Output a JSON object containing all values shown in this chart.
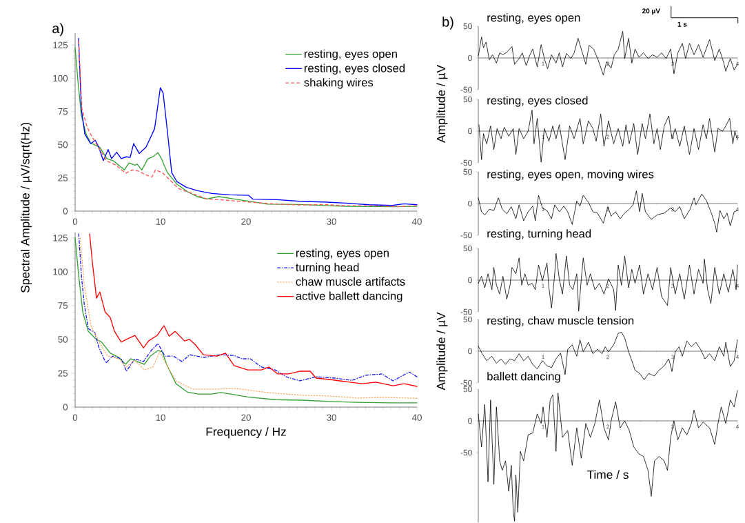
{
  "chart_data": [
    {
      "type": "line",
      "ylabel": "Spectral Amplitude / µV/sqrt(Hz)",
      "annotations": [
        "a)"
      ],
      "xlim": [
        0,
        40
      ],
      "ylim": [
        0,
        134
      ],
      "xticks": [
        0,
        10,
        20,
        30,
        40
      ],
      "yticks": [
        0,
        25,
        50,
        75,
        100,
        125
      ],
      "legend": "top right",
      "series": [
        {
          "name": "resting, eyes open",
          "color": "#33a033",
          "line_style": "solid",
          "x": [
            0,
            0.33,
            0.73,
            1.28,
            1.82,
            2.9,
            3.7,
            4.5,
            5.76,
            6.3,
            7,
            7.25,
            7.8,
            8.5,
            9.2,
            9.7,
            10.1,
            10.8,
            11.9,
            13.2,
            14.3,
            15.4,
            16.8,
            18.1,
            20.3,
            22.5,
            26.3,
            31.7,
            37.1,
            40
          ],
          "values": [
            123,
            98,
            72,
            58,
            51.3,
            48,
            39.5,
            37.8,
            31,
            36.3,
            34.6,
            35.4,
            31,
            39.3,
            41.4,
            44,
            39.5,
            29,
            20.4,
            14.4,
            10.9,
            9.2,
            10.9,
            9.7,
            7.5,
            5.3,
            5,
            3.6,
            3.3,
            3.6
          ]
        },
        {
          "name": "resting, eyes closed",
          "color": "#0000ff",
          "line_style": "solid",
          "x": [
            0.4,
            0.73,
            1.14,
            1.82,
            2.36,
            2.77,
            3.3,
            3.86,
            4.27,
            4.86,
            5.4,
            6,
            6.44,
            6.85,
            7.5,
            8.3,
            9.3,
            9.97,
            10.3,
            10.8,
            11.3,
            11.9,
            13,
            14.3,
            16,
            18.1,
            20.3,
            20.8,
            23.6,
            26.3,
            29,
            31.7,
            34.4,
            37.1,
            38.5,
            40
          ],
          "values": [
            130,
            77,
            58,
            50.8,
            53.4,
            48,
            38,
            46.4,
            39.5,
            44.3,
            39.5,
            40.9,
            40.4,
            50.8,
            43.4,
            48.2,
            62,
            92.9,
            88.9,
            60,
            29,
            22.3,
            18,
            15.4,
            13.3,
            12.3,
            11.9,
            9,
            8.6,
            7.4,
            6.9,
            6,
            4.8,
            4.3,
            5.5,
            4.8
          ]
        },
        {
          "name": "shaking wires",
          "color": "#ff5555",
          "line_style": "dashed",
          "x": [
            0.42,
            0.8,
            1.4,
            1.8,
            2.9,
            3.7,
            4.8,
            5.9,
            6.7,
            7.5,
            8.2,
            9,
            9.4,
            10.2,
            11,
            12.1,
            13.5,
            15.4,
            18.1,
            20.8,
            23.6,
            26.3,
            29,
            31.7,
            34.4,
            37.7,
            40
          ],
          "values": [
            128,
            77,
            63.5,
            58,
            46,
            37.8,
            34.6,
            28.5,
            31,
            30,
            27.5,
            25.7,
            31,
            29,
            24,
            17,
            13.8,
            9.2,
            8,
            6.6,
            5.3,
            4.6,
            5,
            4.1,
            4.1,
            3.3,
            4.1
          ]
        }
      ]
    },
    {
      "type": "line",
      "xlabel": "Frequency / Hz",
      "xlim": [
        0,
        40
      ],
      "ylim": [
        0,
        129
      ],
      "xticks": [
        0,
        10,
        20,
        30,
        40
      ],
      "yticks": [
        0,
        25,
        50,
        75,
        100,
        125
      ],
      "legend": "top right",
      "series": [
        {
          "name": "resting, eyes open",
          "color": "#33a033",
          "line_style": "solid",
          "x": [
            0,
            0.42,
            0.9,
            1.54,
            2.5,
            3.1,
            4.1,
            5.1,
            5.9,
            6.5,
            7.3,
            8.1,
            8.8,
            9.7,
            10.2,
            10.7,
            11.8,
            13.1,
            14.4,
            16,
            17,
            18.2,
            20.2,
            23.4,
            26.6,
            29.8,
            33,
            36.9,
            40
          ],
          "values": [
            125,
            96.9,
            70,
            56,
            50,
            48,
            40,
            36.7,
            31.6,
            35.7,
            33.6,
            31.6,
            37.7,
            41.8,
            40.8,
            31.6,
            17.3,
            11.2,
            9.6,
            9.6,
            10.8,
            9.6,
            7.5,
            5.5,
            5.1,
            4.1,
            3.5,
            3.1,
            3.1
          ]
        },
        {
          "name": "turning head",
          "color": "#1a1aee",
          "line_style": "dashdot",
          "x": [
            0.42,
            0.74,
            1.06,
            1.54,
            2.3,
            2.8,
            3.6,
            4.4,
            5.4,
            6,
            7,
            8,
            8.9,
            9.7,
            10.5,
            11.5,
            12.5,
            13.4,
            15,
            17,
            18.6,
            19.5,
            20.5,
            21.8,
            23.4,
            24.7,
            26.3,
            28.2,
            30.4,
            32.4,
            34,
            35.9,
            37.2,
            39.1,
            40
          ],
          "values": [
            128,
            96.9,
            76.5,
            58,
            55,
            43.8,
            32.6,
            37.7,
            35.7,
            26.5,
            35.7,
            33.6,
            41.8,
            46.9,
            37.7,
            37.7,
            33.6,
            38.7,
            36.7,
            38.7,
            38.1,
            35.7,
            35.7,
            29.6,
            27.5,
            22.4,
            19.4,
            22.4,
            21.4,
            19.8,
            23.5,
            24.5,
            19.4,
            25.9,
            22.4
          ]
        },
        {
          "name": "chaw muscle artifacts",
          "color": "#ffaa66",
          "line_style": "dotted",
          "x": [
            0.58,
            1.06,
            1.86,
            2.8,
            3.8,
            5.1,
            6,
            7,
            8.1,
            9.1,
            9.9,
            10.5,
            11.8,
            13.7,
            16.3,
            18.9,
            21.4,
            23.4,
            26.6,
            29.8,
            33,
            36.2,
            40
          ],
          "values": [
            125,
            90.7,
            60,
            48,
            37.7,
            35.7,
            29.6,
            34.7,
            27.5,
            29.6,
            40.8,
            33.6,
            19.4,
            13.3,
            13.3,
            13.7,
            11.6,
            10.2,
            8.8,
            8.2,
            6.7,
            7.1,
            6.5
          ]
        },
        {
          "name": "active ballett dancing",
          "color": "#ff0000",
          "line_style": "solid",
          "x": [
            1.7,
            2.02,
            2.5,
            2.9,
            3.5,
            4.1,
            4.6,
            5.4,
            6,
            7,
            8,
            8.6,
            9.6,
            10.4,
            11,
            11.7,
            12.8,
            13.4,
            14.1,
            15,
            16.6,
            17.6,
            18.6,
            20.2,
            21.8,
            22.7,
            23.7,
            25,
            26.3,
            27.5,
            28.2,
            29.8,
            31.4,
            33.6,
            35.2,
            37.2,
            38.5,
            40
          ],
          "values": [
            128,
            107,
            80.5,
            85,
            70.4,
            66.3,
            56,
            48,
            50,
            53,
            43.8,
            48.9,
            53,
            60.2,
            52.4,
            56,
            48.9,
            50,
            45.9,
            38.7,
            37.7,
            39.8,
            30.6,
            27.5,
            27.5,
            29.6,
            24.5,
            24.5,
            26.5,
            26.5,
            21.4,
            20.4,
            19,
            17.3,
            18.4,
            15.7,
            17.3,
            15.3
          ]
        }
      ]
    },
    {
      "type": "line",
      "title": "resting, eyes open",
      "annotations": [
        "b)",
        "20 µV",
        "1 s"
      ],
      "xlim": [
        0,
        4
      ],
      "ylim": [
        -50,
        50
      ],
      "xticks": [
        1,
        2,
        3,
        4
      ],
      "yticks": [
        -50,
        0,
        50
      ],
      "color": "#000000",
      "x": [
        0,
        0.05,
        0.08,
        0.12,
        0.17,
        0.22,
        0.28,
        0.33,
        0.38,
        0.45,
        0.52,
        0.56,
        0.63,
        0.68,
        0.74,
        0.79,
        0.84,
        0.91,
        0.97,
        1.02,
        1.07,
        1.13,
        1.2,
        1.25,
        1.3,
        1.36,
        1.43,
        1.48,
        1.54,
        1.61,
        1.66,
        1.71,
        1.78,
        1.85,
        1.93,
        1.98,
        2.05,
        2.1,
        2.16,
        2.23,
        2.26,
        2.32,
        2.37,
        2.42,
        2.48,
        2.55,
        2.62,
        2.69,
        2.76,
        2.83,
        2.9,
        2.97,
        3.02,
        3.08,
        3.15,
        3.2,
        3.26,
        3.33,
        3.4,
        3.47,
        3.57,
        3.65,
        3.72,
        3.79,
        3.82,
        3.89,
        3.95,
        4
      ],
      "values": [
        3,
        33,
        16,
        25,
        -3,
        5,
        -8,
        8,
        5,
        10,
        18,
        -10,
        -1,
        8,
        -12,
        3,
        14,
        -14,
        21,
        -1,
        -17,
        5,
        -8,
        8,
        -14,
        7,
        -1,
        8,
        31,
        7,
        -10,
        20,
        14,
        -3,
        -27,
        -6,
        -16,
        5,
        14,
        42,
        -1,
        31,
        -8,
        14,
        1,
        8,
        -1,
        5,
        1,
        8,
        -1,
        14,
        -25,
        8,
        23,
        -1,
        23,
        5,
        21,
        1,
        29,
        -4,
        14,
        -8,
        -21,
        -1,
        -19,
        -10
      ]
    },
    {
      "type": "line",
      "title": "resting, eyes closed",
      "ylabel": "Amplitude / µV",
      "xlim": [
        0,
        4
      ],
      "ylim": [
        -50,
        50
      ],
      "xticks": [
        1,
        2,
        3,
        4
      ],
      "yticks": [
        -50,
        0,
        50
      ],
      "color": "#000000",
      "x": [
        0.01,
        0.05,
        0.08,
        0.13,
        0.19,
        0.24,
        0.29,
        0.35,
        0.4,
        0.47,
        0.54,
        0.58,
        0.63,
        0.7,
        0.77,
        0.83,
        0.86,
        0.91,
        0.97,
        1.02,
        1.09,
        1.15,
        1.2,
        1.25,
        1.34,
        1.41,
        1.48,
        1.57,
        1.62,
        1.7,
        1.77,
        1.82,
        1.89,
        1.94,
        2.01,
        2.09,
        2.16,
        2.23,
        2.28,
        2.33,
        2.4,
        2.46,
        2.53,
        2.58,
        2.65,
        2.71,
        2.76,
        2.81,
        2.87,
        2.94,
        2.99,
        3.04,
        3.11,
        3.18,
        3.26,
        3.33,
        3.4,
        3.47,
        3.52,
        3.57,
        3.65,
        3.7,
        3.77,
        3.82,
        3.88,
        3.93,
        3.96,
        4
      ],
      "values": [
        10,
        -45,
        -4,
        -20,
        8,
        -29,
        4,
        -12,
        6,
        -8,
        4,
        -37,
        4,
        -12,
        0,
        33,
        -20,
        20,
        -49,
        4,
        -16,
        8,
        -12,
        10,
        -45,
        8,
        -12,
        20,
        -20,
        16,
        4,
        -16,
        27,
        -24,
        16,
        -20,
        4,
        -24,
        10,
        -20,
        12,
        -37,
        12,
        -12,
        27,
        -20,
        4,
        -29,
        8,
        24,
        -12,
        4,
        -24,
        8,
        -37,
        4,
        -29,
        10,
        -12,
        20,
        -33,
        4,
        0,
        8,
        20,
        -20,
        0,
        -14
      ]
    },
    {
      "type": "line",
      "title": "resting, eyes open, moving wires",
      "xlim": [
        0,
        4
      ],
      "ylim": [
        -50,
        50
      ],
      "xticks": [
        1,
        2,
        3,
        4
      ],
      "yticks": [
        -50,
        0,
        50
      ],
      "color": "#000000",
      "x": [
        0,
        0.05,
        0.1,
        0.17,
        0.24,
        0.31,
        0.37,
        0.44,
        0.51,
        0.58,
        0.63,
        0.7,
        0.77,
        0.84,
        0.88,
        0.93,
        0.99,
        1.06,
        1.13,
        1.18,
        1.25,
        1.32,
        1.38,
        1.45,
        1.52,
        1.57,
        1.62,
        1.7,
        1.77,
        1.84,
        1.93,
        2,
        2.05,
        2.12,
        2.19,
        2.26,
        2.33,
        2.39,
        2.44,
        2.49,
        2.53,
        2.58,
        2.67,
        2.76,
        2.87,
        2.97,
        3.04,
        3.11,
        3.18,
        3.27,
        3.33,
        3.36,
        3.45,
        3.52,
        3.59,
        3.65,
        3.68,
        3.73,
        3.79,
        3.84,
        3.89,
        3.95,
        4
      ],
      "values": [
        9,
        -13,
        -18,
        -9,
        -11,
        9,
        -9,
        -16,
        -5,
        -24,
        -2,
        -27,
        -13,
        -4,
        -27,
        13,
        -7,
        -11,
        -24,
        -2,
        -13,
        -4,
        -13,
        -33,
        4,
        -4,
        13,
        2,
        -13,
        -15,
        -31,
        -5,
        -20,
        -13,
        -24,
        -15,
        -9,
        -2,
        20,
        -13,
        16,
        -13,
        -25,
        -18,
        -15,
        -7,
        -13,
        -5,
        -24,
        -9,
        9,
        -2,
        15,
        5,
        -13,
        -31,
        -45,
        -11,
        -24,
        -15,
        -35,
        -13,
        -11
      ]
    },
    {
      "type": "line",
      "title": "resting, turning head",
      "xlim": [
        0,
        4
      ],
      "ylim": [
        -50,
        50
      ],
      "xticks": [
        1,
        2,
        3,
        4
      ],
      "yticks": [
        -50,
        0,
        50
      ],
      "color": "#000000",
      "x": [
        0,
        0.05,
        0.1,
        0.15,
        0.21,
        0.24,
        0.28,
        0.33,
        0.38,
        0.44,
        0.49,
        0.52,
        0.58,
        0.63,
        0.67,
        0.72,
        0.77,
        0.83,
        0.88,
        0.93,
        0.99,
        1.06,
        1.09,
        1.13,
        1.18,
        1.2,
        1.25,
        1.3,
        1.36,
        1.41,
        1.46,
        1.52,
        1.55,
        1.59,
        1.62,
        1.68,
        1.73,
        1.8,
        1.87,
        1.94,
        2.01,
        2.09,
        2.12,
        2.16,
        2.21,
        2.26,
        2.32,
        2.37,
        2.42,
        2.49,
        2.55,
        2.62,
        2.69,
        2.76,
        2.83,
        2.92,
        2.97,
        3.04,
        3.11,
        3.18,
        3.26,
        3.33,
        3.4,
        3.47,
        3.49,
        3.54,
        3.59,
        3.65,
        3.72,
        3.79,
        3.86,
        3.93,
        3.98,
        4
      ],
      "values": [
        -5,
        6,
        -12,
        10,
        -15,
        20,
        -8,
        -22,
        6,
        -30,
        -8,
        20,
        10,
        35,
        -8,
        10,
        -8,
        -5,
        -15,
        24,
        -1,
        27,
        -12,
        -44,
        10,
        42,
        2,
        -22,
        38,
        -8,
        -15,
        10,
        -49,
        2,
        35,
        -8,
        10,
        -15,
        -5,
        -22,
        2,
        -15,
        -48,
        24,
        -8,
        38,
        -12,
        17,
        -5,
        24,
        -22,
        10,
        -15,
        20,
        -26,
        -40,
        20,
        -22,
        10,
        -30,
        24,
        -22,
        17,
        -5,
        33,
        -15,
        -37,
        20,
        -22,
        10,
        -19,
        17,
        -15,
        24
      ]
    },
    {
      "type": "line",
      "title": "resting, chaw muscle tension",
      "ylabel": "Amplitude / µV",
      "xlim": [
        0,
        4
      ],
      "ylim": [
        -50,
        50
      ],
      "xticks": [
        1,
        2,
        3,
        4
      ],
      "yticks": [
        -50,
        0,
        50
      ],
      "color": "#000000",
      "x": [
        0,
        0.06,
        0.13,
        0.21,
        0.28,
        0.35,
        0.42,
        0.49,
        0.56,
        0.63,
        0.7,
        0.77,
        0.84,
        0.91,
        0.99,
        1.06,
        1.13,
        1.2,
        1.27,
        1.34,
        1.38,
        1.45,
        1.52,
        1.57,
        1.62,
        1.7,
        1.77,
        1.84,
        1.91,
        1.96,
        2.01,
        2.09,
        2.16,
        2.21,
        2.26,
        2.32,
        2.37,
        2.42,
        2.49,
        2.56,
        2.63,
        2.72,
        2.79,
        2.87,
        2.94,
        2.99,
        3.04,
        3.1,
        3.15,
        3.22,
        3.29,
        3.36,
        3.43,
        3.5,
        3.57,
        3.65,
        3.72,
        3.79,
        3.82,
        3.89,
        3.95,
        4
      ],
      "values": [
        8,
        -4,
        -15,
        -8,
        -19,
        -12,
        -21,
        -12,
        -15,
        -4,
        -15,
        -8,
        -21,
        -28,
        -15,
        -23,
        -26,
        -12,
        -3,
        -37,
        3,
        10,
        -8,
        18,
        -1,
        14,
        -4,
        3,
        -4,
        7,
        -1,
        10,
        28,
        30,
        21,
        -1,
        -15,
        -30,
        -35,
        -45,
        -35,
        -39,
        -30,
        -23,
        -12,
        -32,
        -1,
        7,
        -8,
        16,
        7,
        14,
        3,
        -12,
        -4,
        -15,
        7,
        -8,
        14,
        -24,
        -15,
        18
      ]
    },
    {
      "type": "line",
      "title": "ballett dancing",
      "xlabel": "Time / s",
      "xlim": [
        0,
        4
      ],
      "ylim": [
        -160,
        50
      ],
      "xticks": [
        1,
        2,
        3,
        4
      ],
      "yticks": [
        -50,
        0,
        50
      ],
      "color": "#000000",
      "x": [
        0,
        0.05,
        0.1,
        0.15,
        0.19,
        0.24,
        0.28,
        0.33,
        0.37,
        0.42,
        0.47,
        0.51,
        0.54,
        0.56,
        0.58,
        0.61,
        0.65,
        0.7,
        0.77,
        0.84,
        0.91,
        0.97,
        1,
        1.06,
        1.11,
        1.15,
        1.2,
        1.23,
        1.3,
        1.38,
        1.45,
        1.52,
        1.59,
        1.66,
        1.73,
        1.8,
        1.87,
        1.94,
        2.01,
        2.05,
        2.12,
        2.19,
        2.26,
        2.33,
        2.4,
        2.48,
        2.55,
        2.62,
        2.67,
        2.72,
        2.79,
        2.87,
        2.92,
        2.97,
        3.02,
        3.08,
        3.15,
        3.22,
        3.29,
        3.33,
        3.4,
        3.47,
        3.57,
        3.65,
        3.7,
        3.75,
        3.82,
        3.89,
        3.95,
        4
      ],
      "values": [
        11,
        -41,
        26,
        -96,
        33,
        -100,
        22,
        -63,
        -78,
        -63,
        -111,
        -70,
        -144,
        -158,
        -85,
        -144,
        -48,
        -63,
        -22,
        -19,
        11,
        -4,
        22,
        -26,
        33,
        41,
        -48,
        44,
        -26,
        -15,
        -70,
        -11,
        -59,
        -4,
        -26,
        -4,
        33,
        -11,
        -30,
        0,
        30,
        -11,
        0,
        -15,
        -41,
        -52,
        -56,
        -78,
        -119,
        -63,
        -56,
        -63,
        -78,
        -26,
        0,
        -30,
        -11,
        -22,
        -4,
        17,
        -11,
        -2,
        -11,
        -37,
        -4,
        22,
        -4,
        33,
        22,
        48
      ]
    }
  ]
}
